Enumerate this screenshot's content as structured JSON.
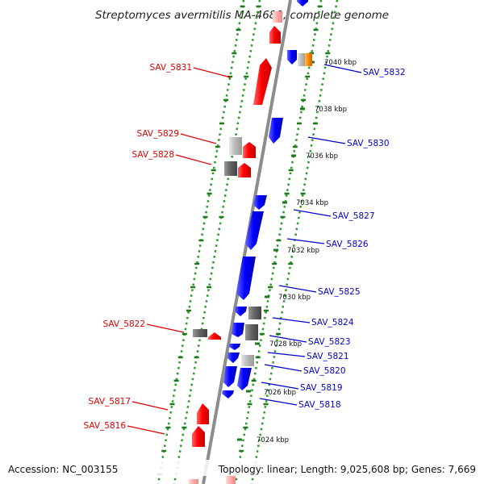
{
  "title": "Streptomyces avermitilis MA-4680, complete genome",
  "footer": {
    "accession": "Accession: NC_003155",
    "topology": "Topology: linear; Length: 9,025,608 bp; Genes: 7,669"
  },
  "colors": {
    "backbone": "#8c8c8c",
    "dots": "#2a9a2a",
    "ticks": "#1b7a1b",
    "forward_gene": "#ff0000",
    "reverse_gene": "#0000ff",
    "gray_gene": "#666666",
    "light_gray_gene": "#bbbbbb",
    "orange_gene": "#ff8c00",
    "pink_gene": "#ffaaaa",
    "label_left": "#dd0000",
    "label_right": "#0000cc"
  },
  "kbp_labels": [
    "7040 kbp",
    "7038 kbp",
    "7036 kbp",
    "7034 kbp",
    "7032 kbp",
    "7030 kbp",
    "7028 kbp",
    "7026 kbp",
    "7024 kbp"
  ],
  "gene_labels_left": [
    "SAV_5831",
    "SAV_5829",
    "SAV_5828",
    "SAV_5822",
    "SAV_5817",
    "SAV_5816"
  ],
  "gene_labels_right": [
    "SAV_5832",
    "SAV_5830",
    "SAV_5827",
    "SAV_5826",
    "SAV_5825",
    "SAV_5824",
    "SAV_5823",
    "SAV_5821",
    "SAV_5820",
    "SAV_5819",
    "SAV_5818"
  ]
}
